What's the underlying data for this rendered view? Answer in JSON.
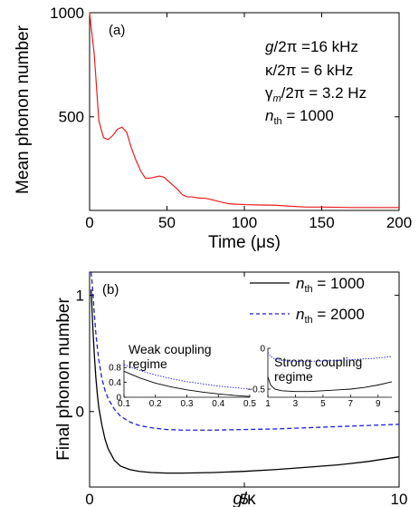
{
  "chart_data": [
    {
      "type": "line",
      "panel_label": "(a)",
      "xlabel": "Time (μs)",
      "ylabel": "Mean phonon number",
      "xlim": [
        0,
        200
      ],
      "ylim": [
        50,
        1000
      ],
      "xticks": [
        0,
        50,
        100,
        150,
        200
      ],
      "yticks": [
        500,
        1000
      ],
      "parameters": [
        "g/2π =16 kHz",
        "κ/2π = 6 kHz",
        "γm/2π = 3.2 Hz",
        "nth = 1000"
      ],
      "series": [
        {
          "color": "#ee1c1c",
          "x": [
            0,
            3,
            6,
            9,
            12,
            15,
            18,
            21,
            24,
            27,
            30,
            33,
            36,
            39,
            42,
            45,
            48,
            51,
            54,
            57,
            60,
            63,
            66,
            70,
            75,
            80,
            85,
            90,
            95,
            100,
            110,
            120,
            130,
            140,
            150,
            160,
            170,
            180,
            190,
            200
          ],
          "y": [
            1000,
            800,
            480,
            400,
            390,
            410,
            440,
            450,
            425,
            350,
            290,
            240,
            205,
            205,
            210,
            215,
            210,
            190,
            170,
            150,
            125,
            115,
            115,
            110,
            108,
            100,
            90,
            82,
            80,
            78,
            76,
            75,
            70,
            66,
            66,
            65,
            64,
            64,
            64,
            64
          ]
        }
      ]
    },
    {
      "type": "line",
      "panel_label": "(b)",
      "xlabel": "g/κ",
      "ylabel": "Final phonon number",
      "xlim": [
        0,
        10
      ],
      "ylim": [
        -0.65,
        1.2
      ],
      "xticks": [
        0,
        5,
        10
      ],
      "yticks": [
        0,
        1
      ],
      "legend": "top-right",
      "series": [
        {
          "name": "nth = 1000",
          "color": "#000000",
          "dash": "solid",
          "x": [
            0.05,
            0.1,
            0.15,
            0.2,
            0.25,
            0.3,
            0.4,
            0.5,
            0.6,
            0.8,
            1.0,
            1.3,
            1.6,
            2.0,
            2.5,
            3.0,
            4.0,
            5.0,
            6.0,
            7.0,
            8.0,
            9.0,
            10.0
          ],
          "y": [
            1.05,
            0.75,
            0.5,
            0.3,
            0.15,
            0.03,
            -0.12,
            -0.24,
            -0.32,
            -0.42,
            -0.47,
            -0.5,
            -0.515,
            -0.525,
            -0.53,
            -0.53,
            -0.525,
            -0.515,
            -0.5,
            -0.48,
            -0.46,
            -0.43,
            -0.39
          ]
        },
        {
          "name": "nth = 2000",
          "color": "#1f1fd1",
          "dash": "dashed",
          "x": [
            0.05,
            0.1,
            0.15,
            0.2,
            0.25,
            0.3,
            0.4,
            0.5,
            0.6,
            0.8,
            1.0,
            1.3,
            1.6,
            2.0,
            2.5,
            3.0,
            4.0,
            5.0,
            6.0,
            7.0,
            8.0,
            9.0,
            10.0
          ],
          "y": [
            1.2,
            1.05,
            0.85,
            0.68,
            0.55,
            0.44,
            0.28,
            0.18,
            0.11,
            0.02,
            -0.04,
            -0.09,
            -0.12,
            -0.14,
            -0.155,
            -0.16,
            -0.16,
            -0.155,
            -0.15,
            -0.14,
            -0.13,
            -0.12,
            -0.11
          ]
        }
      ],
      "insets": [
        {
          "title": "Weak coupling regime",
          "xlim": [
            0.1,
            0.5
          ],
          "ylim": [
            0.0,
            1.0
          ],
          "xticks": [
            0.1,
            0.2,
            0.3,
            0.4,
            0.5
          ],
          "yticks": [
            0.0,
            0.4,
            0.8
          ],
          "series": [
            {
              "name": "nth = 1000",
              "x": [
                0.1,
                0.15,
                0.2,
                0.25,
                0.3,
                0.35,
                0.4,
                0.45,
                0.5
              ],
              "y": [
                0.7,
                0.52,
                0.38,
                0.28,
                0.2,
                0.14,
                0.09,
                0.05,
                0.02
              ]
            },
            {
              "name": "nth = 2000",
              "x": [
                0.1,
                0.15,
                0.2,
                0.25,
                0.3,
                0.35,
                0.4,
                0.45,
                0.5
              ],
              "y": [
                0.88,
                0.72,
                0.6,
                0.5,
                0.42,
                0.36,
                0.3,
                0.26,
                0.22
              ]
            }
          ]
        },
        {
          "title": "Strong coupling regime",
          "xlim": [
            1,
            10
          ],
          "ylim": [
            -0.6,
            0.0
          ],
          "xticks": [
            1,
            3,
            5,
            7,
            9
          ],
          "yticks": [
            -0.5,
            0.0
          ],
          "series": [
            {
              "name": "nth = 1000",
              "x": [
                1,
                1.2,
                1.5,
                2,
                3,
                4,
                5,
                6,
                7,
                8,
                9,
                10
              ],
              "y": [
                -0.35,
                -0.45,
                -0.5,
                -0.52,
                -0.53,
                -0.53,
                -0.52,
                -0.51,
                -0.5,
                -0.48,
                -0.45,
                -0.41
              ]
            },
            {
              "name": "nth = 2000",
              "x": [
                1,
                1.2,
                1.5,
                2,
                3,
                4,
                5,
                6,
                7,
                8,
                9,
                10
              ],
              "y": [
                -0.05,
                -0.1,
                -0.13,
                -0.15,
                -0.16,
                -0.16,
                -0.155,
                -0.15,
                -0.14,
                -0.13,
                -0.12,
                -0.1
              ]
            }
          ]
        }
      ]
    }
  ]
}
